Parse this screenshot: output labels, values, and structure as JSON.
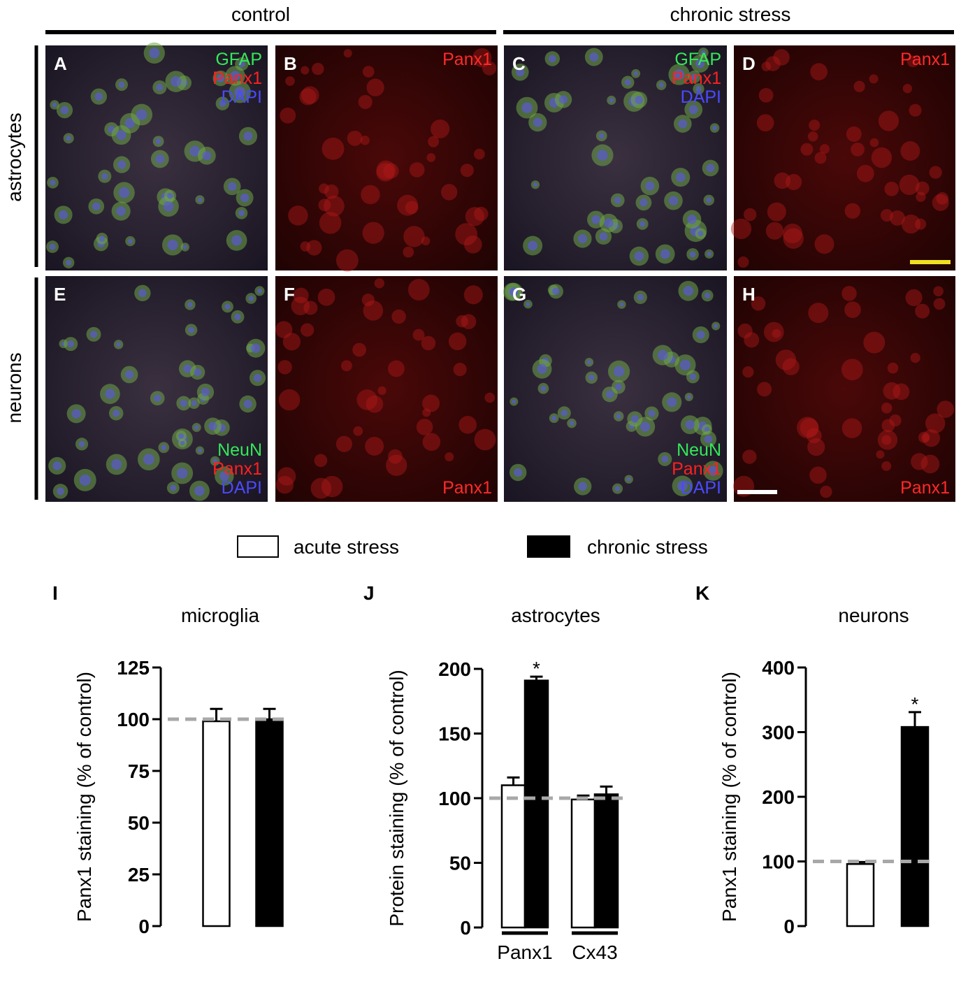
{
  "figure": {
    "columns": [
      "control",
      "chronic stress"
    ],
    "rows": [
      "astrocytes",
      "neurons"
    ],
    "panels": [
      {
        "letter": "A",
        "markers": [
          "GFAP",
          "Panx1",
          "DAPI"
        ]
      },
      {
        "letter": "B",
        "markers": [
          "Panx1"
        ]
      },
      {
        "letter": "C",
        "markers": [
          "GFAP",
          "Panx1",
          "DAPI"
        ]
      },
      {
        "letter": "D",
        "markers": [
          "Panx1"
        ]
      },
      {
        "letter": "E",
        "markers": [
          "NeuN",
          "Panx1",
          "DAPI"
        ]
      },
      {
        "letter": "F",
        "markers": [
          "Panx1"
        ]
      },
      {
        "letter": "G",
        "markers": [
          "NeuN",
          "Panx1",
          "DAPI"
        ]
      },
      {
        "letter": "H",
        "markers": [
          "Panx1"
        ]
      }
    ]
  },
  "legend": [
    {
      "name": "acute stress",
      "color": "#ffffff"
    },
    {
      "name": "chronic stress",
      "color": "#000000"
    }
  ],
  "chart_data": [
    {
      "type": "bar",
      "panel": "I",
      "title": "microglia",
      "y_label": "Panx1 staining (% of control)",
      "categories": [
        null
      ],
      "series": [
        {
          "values": [
            99
          ],
          "errors": [
            6
          ]
        },
        {
          "values": [
            100
          ],
          "errors": [
            5
          ]
        }
      ],
      "ylim": [
        0,
        125
      ],
      "yticks": [
        0,
        25,
        50,
        75,
        100,
        125
      ],
      "reference_line": 100,
      "annotations": []
    },
    {
      "type": "bar",
      "panel": "J",
      "title": "astrocytes",
      "y_label": "Protein staining (% of control)",
      "categories": [
        "Panx1",
        "Cx43"
      ],
      "series": [
        {
          "values": [
            110,
            99
          ],
          "errors": [
            6,
            3
          ]
        },
        {
          "values": [
            191,
            103
          ],
          "errors": [
            3,
            6
          ]
        }
      ],
      "ylim": [
        0,
        200
      ],
      "yticks": [
        0,
        50,
        100,
        150,
        200
      ],
      "reference_line": 100,
      "annotations": [
        {
          "text": "*",
          "series": 1,
          "index": 0
        }
      ]
    },
    {
      "type": "bar",
      "panel": "K",
      "title": "neurons",
      "y_label": "Panx1 staining (% of control)",
      "categories": [
        null
      ],
      "series": [
        {
          "values": [
            96
          ],
          "errors": [
            3
          ]
        },
        {
          "values": [
            308
          ],
          "errors": [
            23
          ]
        }
      ],
      "ylim": [
        0,
        400
      ],
      "yticks": [
        0,
        100,
        200,
        300,
        400
      ],
      "reference_line": 100,
      "annotations": [
        {
          "text": "*",
          "series": 1,
          "index": 0
        }
      ]
    }
  ]
}
